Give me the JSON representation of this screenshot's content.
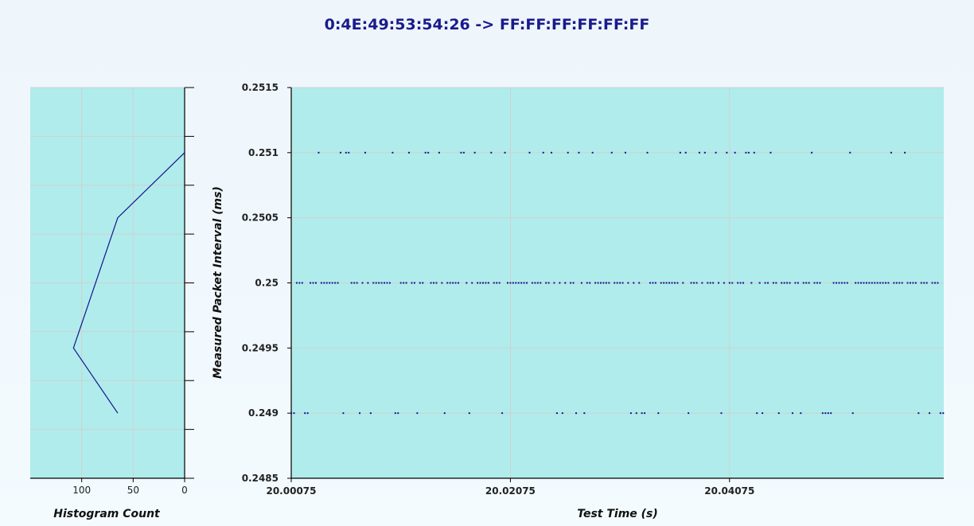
{
  "title": "0:4E:49:53:54:26 -> FF:FF:FF:FF:FF:FF",
  "colors": {
    "plot_bg": "#b0ecec",
    "series": "#14148c",
    "grid": "#d0d0d0",
    "axis": "#000000"
  },
  "chart_data": [
    {
      "type": "scatter",
      "xlabel": "Test Time (s)",
      "ylabel": "Measured Packet Interval (ms)",
      "xlim": [
        20.00075,
        20.0603
      ],
      "ylim": [
        0.2485,
        0.2515
      ],
      "x_ticks": [
        "20.00075",
        "20.02075",
        "20.04075"
      ],
      "x_tick_values": [
        20.00075,
        20.02075,
        20.04075
      ],
      "y_ticks": [
        "0.2485",
        "0.249",
        "0.2495",
        "0.25",
        "0.2505",
        "0.251",
        "0.2515"
      ],
      "y_tick_values": [
        0.2485,
        0.249,
        0.2495,
        0.25,
        0.2505,
        0.251,
        0.2515
      ],
      "grid": true,
      "series": [
        {
          "levels": [
            0.251,
            0.25,
            0.249
          ],
          "x_start": 20.00075,
          "x_end": 20.06025,
          "x_step": 0.00025
        }
      ]
    },
    {
      "type": "line",
      "xlabel": "Histogram Count",
      "x_ticks": [
        "100",
        "50",
        "0"
      ],
      "x_tick_values": [
        100,
        50,
        0
      ],
      "xlim": [
        150,
        0
      ],
      "x_reversed": true,
      "ylim": [
        0.2485,
        0.2515
      ],
      "grid": true,
      "series": [
        {
          "y": [
            0.251,
            0.2505,
            0.2495,
            0.249
          ],
          "values": [
            0,
            65,
            108,
            65
          ]
        }
      ]
    }
  ]
}
